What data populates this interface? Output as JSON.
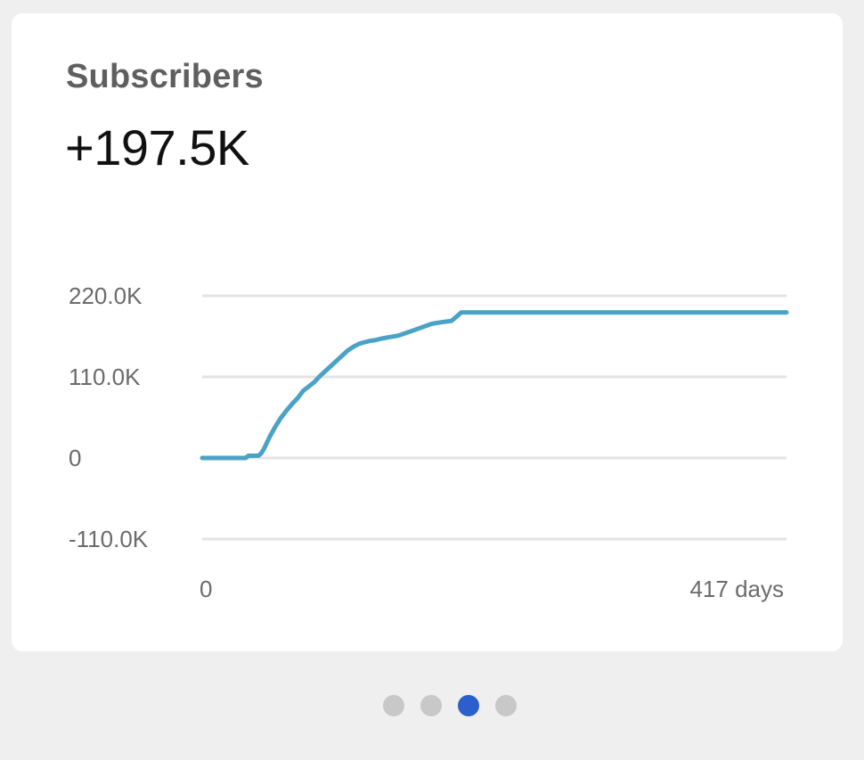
{
  "card": {
    "title": "Subscribers",
    "value": "+197.5K"
  },
  "colors": {
    "line": "#4aa3c6",
    "grid": "#e3e3e3",
    "active_dot": "#2b5fcc",
    "inactive_dot": "#c8c8c8"
  },
  "chart_data": {
    "type": "line",
    "xlabel": "",
    "ylabel": "",
    "xlim": [
      0,
      417
    ],
    "ylim": [
      -110000,
      220000
    ],
    "x_tick_labels": [
      "0",
      "417 days"
    ],
    "y_ticks": [
      {
        "value": 220000,
        "label": "220.0K"
      },
      {
        "value": 110000,
        "label": "110.0K"
      },
      {
        "value": 0,
        "label": "0"
      },
      {
        "value": -110000,
        "label": "-110.0K"
      }
    ],
    "grid": true,
    "series": [
      {
        "x": [
          0,
          31,
          33,
          40,
          42,
          44,
          48,
          52,
          56,
          60,
          64,
          68,
          72,
          76,
          80,
          84,
          88,
          92,
          96,
          100,
          104,
          108,
          112,
          116,
          120,
          124,
          128,
          134,
          140,
          146,
          152,
          158,
          164,
          170,
          178,
          185,
          417
        ],
        "y": [
          0,
          0,
          3000,
          3000,
          6000,
          12000,
          28000,
          42000,
          54000,
          64000,
          73000,
          81000,
          91000,
          97000,
          103000,
          111000,
          118000,
          125000,
          132000,
          139000,
          146000,
          151000,
          155000,
          157000,
          159000,
          160000,
          162000,
          164000,
          166000,
          170000,
          174000,
          178000,
          182000,
          184000,
          186000,
          197500,
          197500
        ]
      }
    ]
  },
  "pager": {
    "count": 4,
    "active_index": 2
  }
}
